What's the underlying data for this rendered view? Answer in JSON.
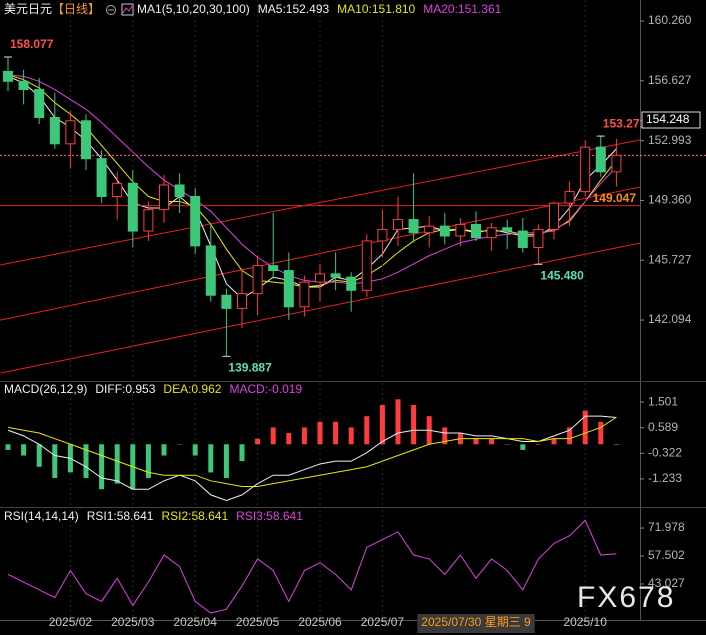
{
  "chart_data": [
    {
      "type": "candlestick",
      "title": "美元日元",
      "period": "【日线】",
      "indicator": "MA1(5,10,20,30,100)",
      "categories": [
        null,
        null,
        null,
        null,
        "2025/02",
        null,
        null,
        null,
        "2025/03",
        null,
        null,
        null,
        "2025/04",
        null,
        null,
        null,
        "2025/05",
        null,
        null,
        null,
        "2025/06",
        null,
        null,
        null,
        "2025/07",
        null,
        null,
        null,
        null,
        null,
        null,
        null,
        null,
        null,
        null,
        null,
        null,
        "2025/10",
        null,
        null
      ],
      "crosshair_label": "2025/07/30 星期三 9",
      "up_color": "#ff3c3c",
      "down_color": "#3cc878",
      "open": [
        157.2,
        156.6,
        156.1,
        154.4,
        152.8,
        154.2,
        151.9,
        149.6,
        150.4,
        147.5,
        148.8,
        150.3,
        149.6,
        146.6,
        143.6,
        142.8,
        143.7,
        145.4,
        145.1,
        142.9,
        144.4,
        144.9,
        144.7,
        143.9,
        146.9,
        147.6,
        148.2,
        147.4,
        147.8,
        147.2,
        147.9,
        147.1,
        147.7,
        147.5,
        146.5,
        147.6,
        149.2,
        149.9,
        152.6,
        151.1
      ],
      "high": [
        158.077,
        157.3,
        156.8,
        155.9,
        154.8,
        154.6,
        152.4,
        151.1,
        151.2,
        149.3,
        150.9,
        151.0,
        150.1,
        147.9,
        144.0,
        145.2,
        146.0,
        148.6,
        146.2,
        144.8,
        145.5,
        146.2,
        145.0,
        147.3,
        148.8,
        149.6,
        151.0,
        148.4,
        148.6,
        148.3,
        148.7,
        148.0,
        148.2,
        148.3,
        147.9,
        149.3,
        150.5,
        153.0,
        153.271,
        153.1
      ],
      "low": [
        156.0,
        155.2,
        154.0,
        152.5,
        151.3,
        151.2,
        149.2,
        148.2,
        146.5,
        146.9,
        148.0,
        148.6,
        146.1,
        143.2,
        139.887,
        141.6,
        142.4,
        144.6,
        142.1,
        142.3,
        143.2,
        143.9,
        142.6,
        143.5,
        145.9,
        146.6,
        146.8,
        146.5,
        146.7,
        146.6,
        146.9,
        146.3,
        146.4,
        146.2,
        145.48,
        147.0,
        147.8,
        149.6,
        150.8,
        150.2
      ],
      "close": [
        156.6,
        156.1,
        154.4,
        152.8,
        154.2,
        151.9,
        149.6,
        150.4,
        147.5,
        148.8,
        150.3,
        149.6,
        146.6,
        143.6,
        142.8,
        143.7,
        145.4,
        145.1,
        142.9,
        144.4,
        144.9,
        144.7,
        143.9,
        146.9,
        147.6,
        148.2,
        147.4,
        147.8,
        147.2,
        147.9,
        147.1,
        147.7,
        147.5,
        146.5,
        147.6,
        149.2,
        149.9,
        152.6,
        151.1,
        152.1
      ],
      "series": [
        {
          "name": "MA5",
          "color": "#f0f0f0",
          "values": [
            156.9,
            156.5,
            155.7,
            154.4,
            153.8,
            153.0,
            151.9,
            150.6,
            149.2,
            148.9,
            148.9,
            149.6,
            148.8,
            146.6,
            144.3,
            143.4,
            144.0,
            144.7,
            144.5,
            144.1,
            144.1,
            144.7,
            144.5,
            145.2,
            146.1,
            147.6,
            147.7,
            147.8,
            147.5,
            147.6,
            147.4,
            147.6,
            147.4,
            147.2,
            147.2,
            147.8,
            148.9,
            150.6,
            151.5,
            152.493
          ]
        },
        {
          "name": "MA10",
          "color": "#e8e800",
          "values": [
            157.0,
            156.7,
            156.2,
            155.3,
            154.6,
            153.8,
            152.7,
            151.6,
            150.5,
            149.6,
            149.3,
            149.3,
            149.0,
            147.9,
            146.4,
            145.1,
            144.5,
            144.4,
            144.3,
            144.1,
            144.2,
            144.5,
            144.4,
            144.8,
            145.4,
            146.2,
            146.9,
            147.4,
            147.6,
            147.6,
            147.5,
            147.5,
            147.5,
            147.3,
            147.3,
            147.6,
            148.1,
            149.3,
            150.6,
            151.81
          ]
        },
        {
          "name": "MA20",
          "color": "#e040e0",
          "values": [
            157.0,
            156.9,
            156.6,
            156.1,
            155.5,
            154.9,
            154.1,
            153.2,
            152.3,
            151.4,
            150.6,
            150.0,
            149.4,
            148.7,
            147.7,
            146.7,
            145.9,
            145.3,
            144.8,
            144.5,
            144.4,
            144.4,
            144.3,
            144.4,
            144.6,
            145.0,
            145.5,
            146.0,
            146.4,
            146.8,
            147.0,
            147.2,
            147.3,
            147.4,
            147.4,
            147.5,
            148.2,
            149.3,
            150.4,
            151.361
          ]
        }
      ],
      "legend": [
        {
          "text": "MA5:152.493",
          "color": "#f0f0f0"
        },
        {
          "text": "MA10:151.810",
          "color": "#e8e800"
        },
        {
          "text": "MA20:151.361",
          "color": "#e040e0"
        }
      ],
      "ylim": [
        138.45,
        161.54
      ],
      "yticks": [
        {
          "value": 160.26,
          "label": "160.260"
        },
        156.627,
        152.993,
        {
          "value": 149.36,
          "label": "149.360"
        },
        145.727,
        142.094
      ],
      "annotations": [
        {
          "x": 0,
          "value": 158.077,
          "position": "above",
          "color": "#ff5050"
        },
        {
          "x": 14,
          "value": 139.887,
          "position": "below",
          "color": "#5ee0b0"
        },
        {
          "x": 34,
          "value": 145.48,
          "label": "145.480",
          "position": "below",
          "color": "#5ee0b0"
        },
        {
          "x": 38,
          "value": 153.271,
          "position": "above",
          "color": "#ff5050"
        }
      ],
      "channel_lines": [
        {
          "x": [
            -0.5,
            40.5
          ],
          "y": [
            145.44,
            153.03
          ]
        },
        {
          "x": [
            -0.5,
            40.5
          ],
          "y": [
            142.09,
            150.18
          ]
        },
        {
          "x": [
            -0.5,
            40.5
          ],
          "y": [
            138.87,
            146.77
          ]
        }
      ],
      "line_color": "#e82020",
      "horizontal_line": {
        "value": 149.047,
        "color": "#ff8c1a"
      },
      "price_box": {
        "value": 154.248
      }
    },
    {
      "type": "macd",
      "title": "MACD(26,12,9)",
      "legend": [
        {
          "text": "DIFF:0.953",
          "color": "#f0f0f0"
        },
        {
          "text": "DEA:0.962",
          "color": "#e8e800"
        },
        {
          "text": "MACD:-0.019",
          "color": "#e040e0"
        }
      ],
      "series": [
        {
          "name": "DIFF",
          "color": "#f0f0f0",
          "values": [
            0.5,
            0.3,
            0.0,
            -0.4,
            -0.5,
            -0.8,
            -1.2,
            -1.3,
            -1.6,
            -1.6,
            -1.3,
            -1.1,
            -1.3,
            -1.8,
            -2.0,
            -1.8,
            -1.4,
            -1.1,
            -1.1,
            -0.9,
            -0.7,
            -0.6,
            -0.6,
            -0.3,
            0.1,
            0.4,
            0.5,
            0.5,
            0.4,
            0.4,
            0.3,
            0.3,
            0.2,
            0.1,
            0.1,
            0.3,
            0.5,
            1.0,
            1.0,
            0.953
          ]
        },
        {
          "name": "DEA",
          "color": "#e8e800",
          "values": [
            0.6,
            0.5,
            0.4,
            0.2,
            0.0,
            -0.2,
            -0.4,
            -0.6,
            -0.8,
            -1.0,
            -1.1,
            -1.1,
            -1.1,
            -1.3,
            -1.4,
            -1.5,
            -1.5,
            -1.4,
            -1.3,
            -1.2,
            -1.1,
            -1.0,
            -0.9,
            -0.8,
            -0.6,
            -0.4,
            -0.2,
            0.0,
            0.1,
            0.2,
            0.2,
            0.2,
            0.2,
            0.2,
            0.1,
            0.2,
            0.2,
            0.4,
            0.6,
            0.962
          ]
        }
      ],
      "histogram": {
        "up_color": "#ff3c3c",
        "down_color": "#3cc878",
        "values": [
          -0.2,
          -0.4,
          -0.8,
          -1.2,
          -1.0,
          -1.2,
          -1.6,
          -1.4,
          -1.6,
          -1.2,
          -0.4,
          0.0,
          -0.4,
          -1.0,
          -1.2,
          -0.6,
          0.2,
          0.6,
          0.4,
          0.6,
          0.8,
          0.8,
          0.6,
          1.0,
          1.4,
          1.6,
          1.4,
          1.0,
          0.6,
          0.4,
          0.2,
          0.2,
          0.0,
          -0.2,
          0.0,
          0.2,
          0.6,
          1.2,
          0.8,
          -0.019
        ]
      },
      "ylim": [
        -2.16,
        2.18
      ],
      "yticks": [
        1.501,
        0.589,
        -0.322,
        -1.233
      ]
    },
    {
      "type": "rsi",
      "title": "RSI(14,14,14)",
      "legend": [
        {
          "text": "RSI1:58.641",
          "color": "#f0f0f0"
        },
        {
          "text": "RSI2:58.641",
          "color": "#e8e800"
        },
        {
          "text": "RSI3:58.641",
          "color": "#e040e0"
        }
      ],
      "series": [
        {
          "name": "RSI",
          "color": "#e040e0",
          "values": [
            48,
            44,
            40,
            36,
            50,
            38,
            34,
            46,
            32,
            44,
            58,
            52,
            34,
            28,
            30,
            42,
            56,
            50,
            34,
            50,
            54,
            48,
            40,
            62,
            66,
            70,
            58,
            56,
            48,
            58,
            46,
            56,
            50,
            40,
            56,
            64,
            68,
            76,
            58,
            58.641
          ]
        }
      ],
      "ylim": [
        24.4,
        81.3
      ],
      "yticks": [
        71.978,
        57.502,
        43.027
      ]
    }
  ],
  "watermark": "FX678"
}
